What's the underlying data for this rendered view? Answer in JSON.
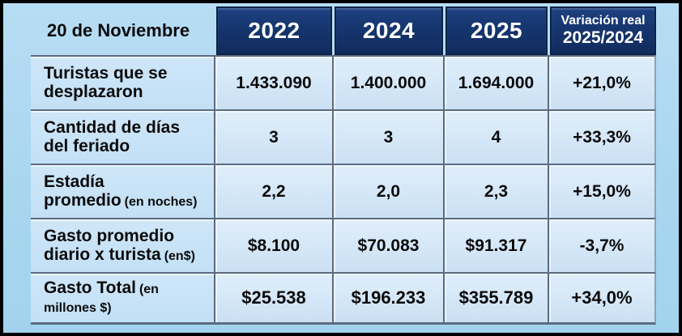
{
  "colors": {
    "frame_border": "#000000",
    "page_background": "#a9d6ef",
    "header_navy": "#16356e",
    "header_text": "#ffffff",
    "label_cell_background": "#c6e2f6",
    "data_cell_background": "#d6e8f8",
    "separator": "#5c6b82",
    "body_text": "#0b0b0b"
  },
  "chart_data": {
    "type": "table",
    "title": "20 de Noviembre",
    "column_headers": [
      "2022",
      "2024",
      "2025",
      "Variación real 2025/2024"
    ],
    "variation_header": {
      "line1": "Variación real",
      "line2": "2025/2024"
    },
    "rows": [
      {
        "label": "Turistas que se desplazaron",
        "sub": "",
        "values": [
          "1.433.090",
          "1.400.000",
          "1.694.000",
          "+21,0%"
        ]
      },
      {
        "label": "Cantidad de días del feriado",
        "sub": "",
        "values": [
          "3",
          "3",
          "4",
          "+33,3%"
        ]
      },
      {
        "label": "Estadía promedio",
        "sub": "(en noches)",
        "values": [
          "2,2",
          "2,0",
          "2,3",
          "+15,0%"
        ]
      },
      {
        "label": "Gasto promedio diario x turista",
        "sub": "(en$)",
        "values": [
          "$8.100",
          "$70.083",
          "$91.317",
          "-3,7%"
        ]
      },
      {
        "label": "Gasto Total",
        "sub": "(en millones $)",
        "values": [
          "$25.538",
          "$196.233",
          "$355.789",
          "+34,0%"
        ]
      }
    ]
  }
}
